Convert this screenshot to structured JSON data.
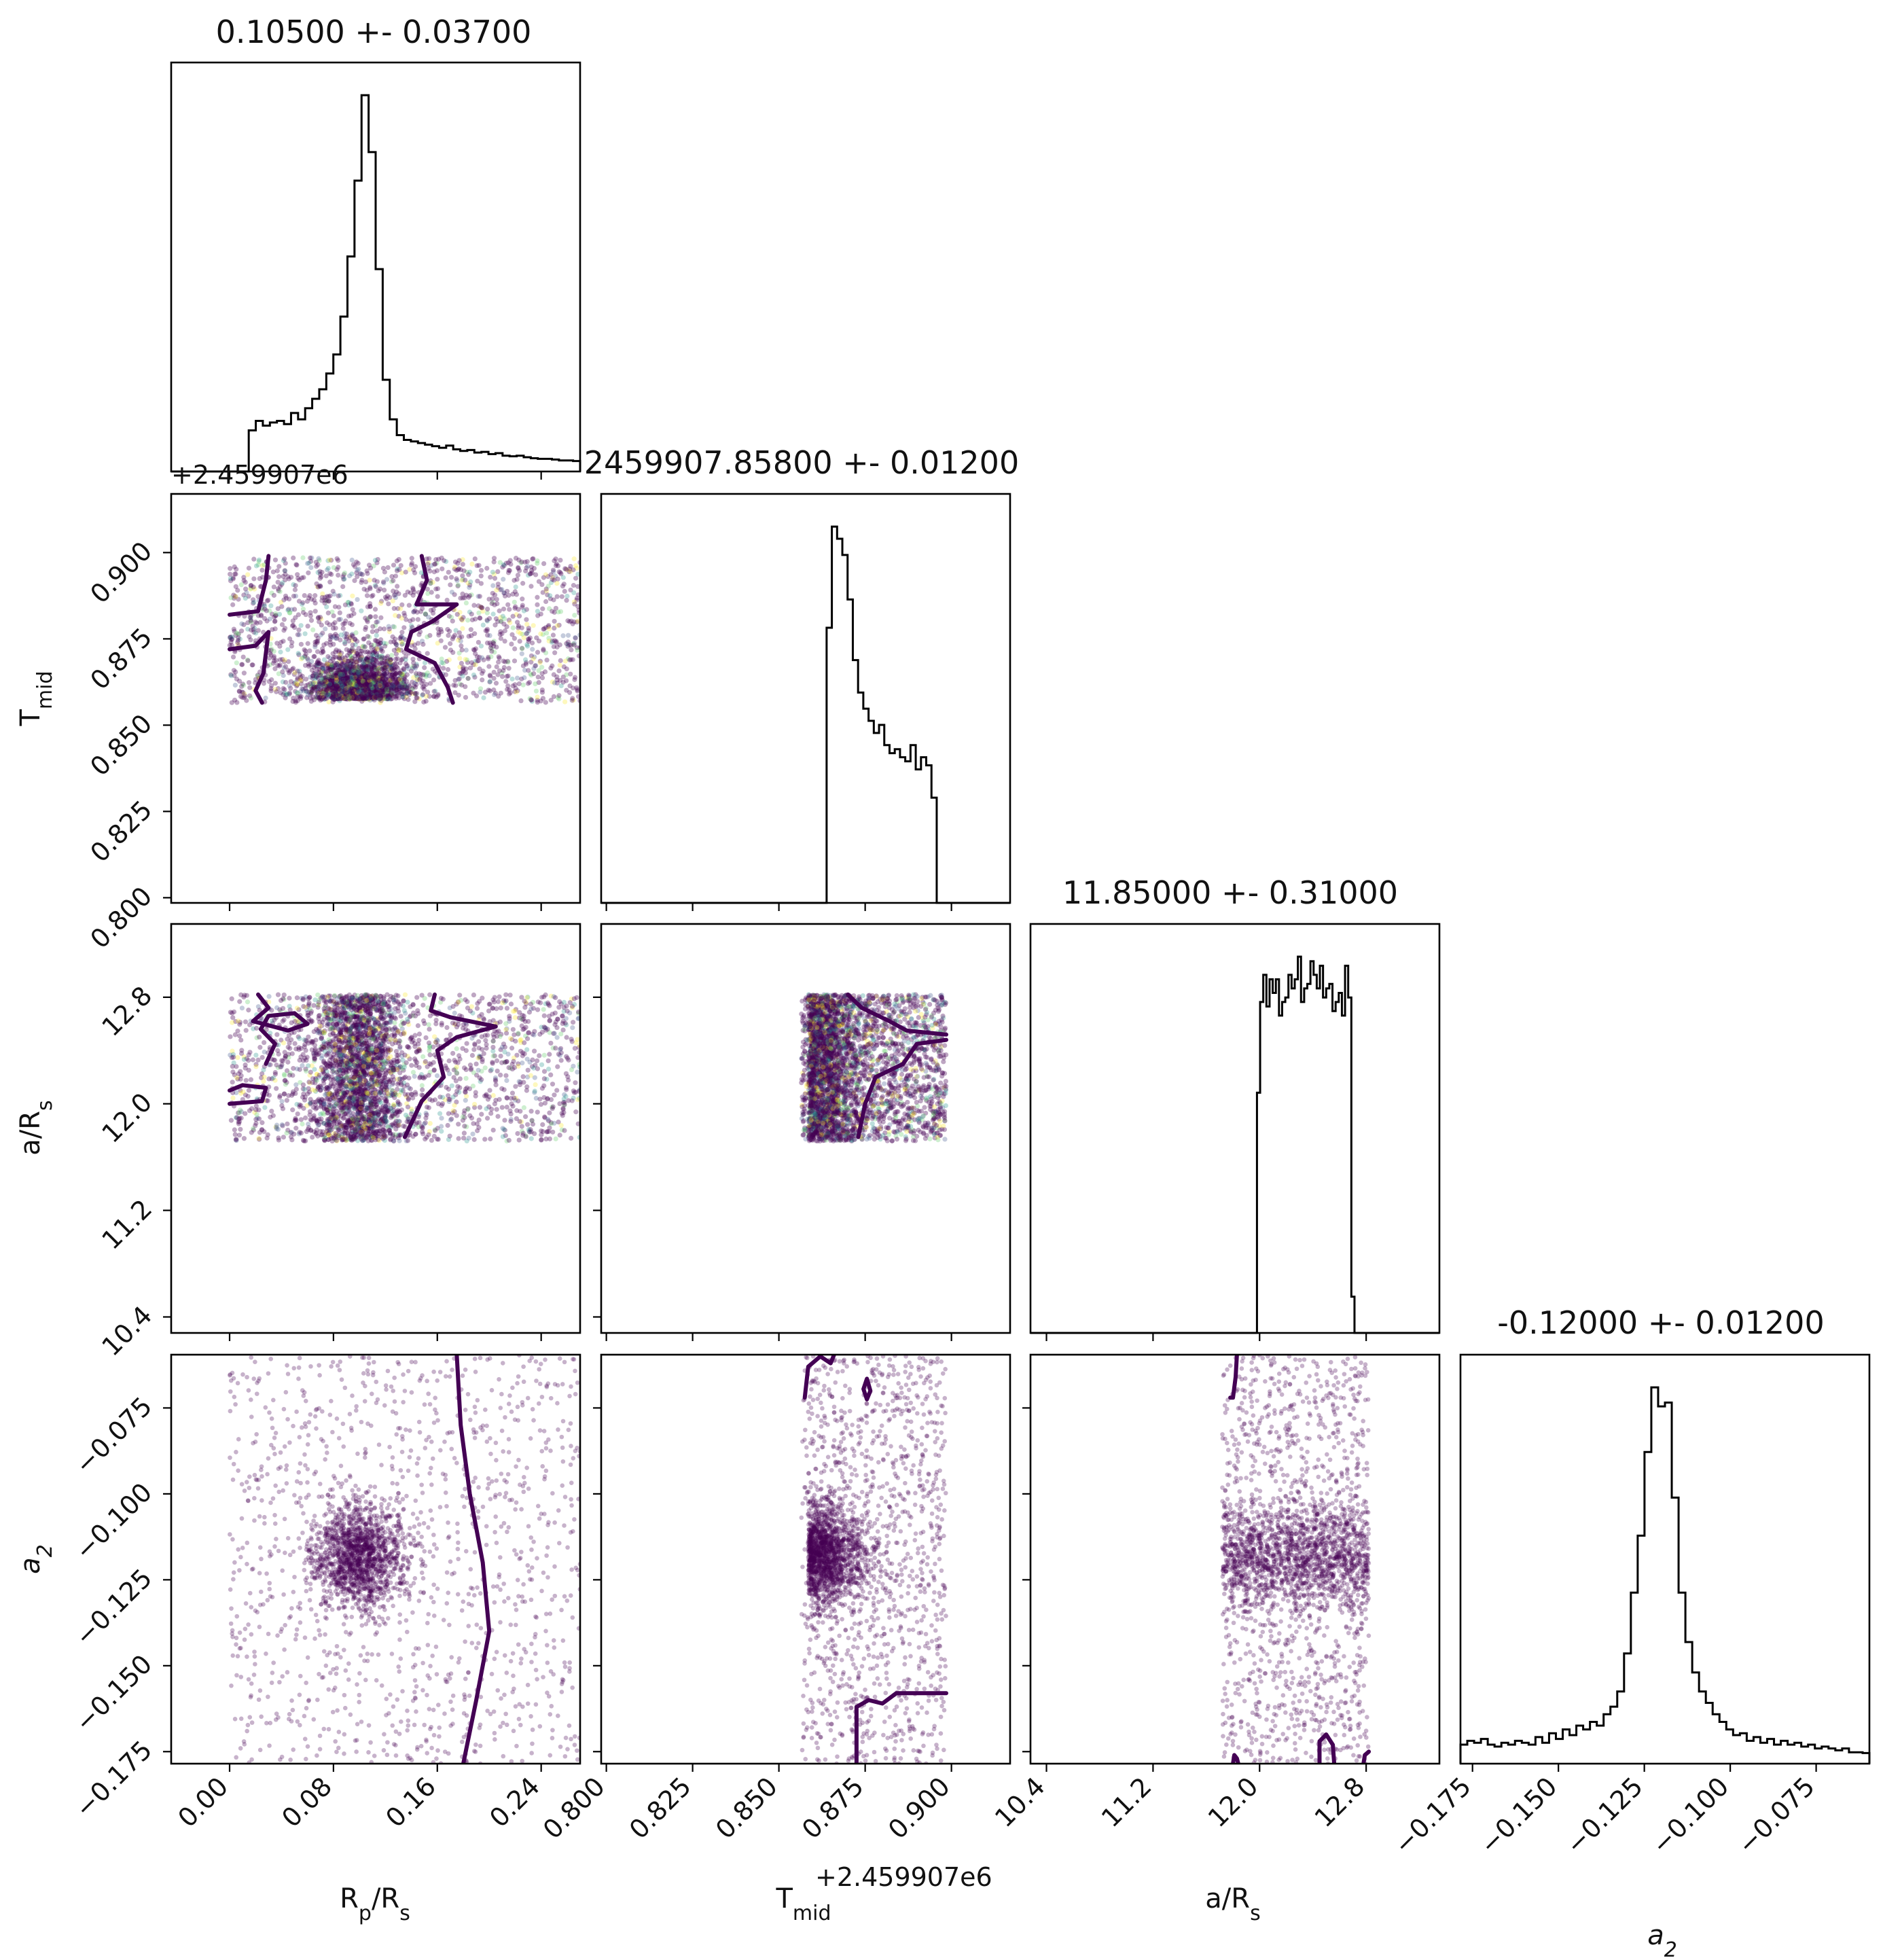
{
  "chart_data": {
    "type": "scatter",
    "title": "",
    "parameters": [
      {
        "key": "rp",
        "label": "R_p/R_s",
        "label_sub": "p",
        "label_base": "R",
        "label_tail": "/R",
        "label_tail_sub": "s",
        "range": [
          -0.045,
          0.27
        ],
        "ticks": [
          0.0,
          0.08,
          0.16,
          0.24
        ],
        "tick_labels": [
          "0.00",
          "0.08",
          "0.16",
          "0.24"
        ],
        "title": "0.10500 +- 0.03700"
      },
      {
        "key": "tmid",
        "label_base": "T",
        "label_sub": "mid",
        "range": [
          0.7985,
          0.917
        ],
        "ticks": [
          0.8,
          0.825,
          0.85,
          0.875,
          0.9
        ],
        "tick_labels": [
          "0.800",
          "0.825",
          "0.850",
          "0.875",
          "0.900"
        ],
        "offset_text": "+2.459907e6",
        "title": "2459907.85800 +- 0.01200"
      },
      {
        "key": "ars",
        "label_base": "a/R",
        "label_sub": "s",
        "range": [
          10.28,
          13.35
        ],
        "ticks": [
          10.4,
          11.2,
          12.0,
          12.8
        ],
        "tick_labels": [
          "10.4",
          "11.2",
          "12.0",
          "12.8"
        ],
        "title": "11.85000 +- 0.31000"
      },
      {
        "key": "a2",
        "label_base": "a",
        "label_sub": "2",
        "range": [
          -0.1785,
          -0.0595
        ],
        "ticks": [
          -0.175,
          -0.15,
          -0.125,
          -0.1,
          -0.075
        ],
        "tick_labels": [
          "−0.175",
          "−0.150",
          "−0.125",
          "−0.100",
          "−0.075"
        ],
        "title": "-0.12000 +- 0.01200"
      }
    ],
    "histograms": {
      "rp": [
        0,
        0,
        0,
        0,
        0,
        0,
        0,
        0,
        0,
        0,
        0,
        1.3,
        1.6,
        1.45,
        1.55,
        1.6,
        1.5,
        1.85,
        1.65,
        2.0,
        2.3,
        2.6,
        3.1,
        3.7,
        4.9,
        6.8,
        9.2,
        11.9,
        10.1,
        6.4,
        2.9,
        1.65,
        1.15,
        1.0,
        0.95,
        0.9,
        0.85,
        0.8,
        0.75,
        0.82,
        0.7,
        0.65,
        0.68,
        0.6,
        0.62,
        0.55,
        0.58,
        0.5,
        0.48,
        0.5,
        0.45,
        0.42,
        0.4,
        0.4,
        0.38,
        0.35,
        0.35,
        0.33
      ],
      "tmid": [
        0,
        0,
        0,
        0,
        0,
        0,
        0,
        0,
        0,
        0,
        0,
        0,
        0,
        0,
        0,
        0,
        0,
        0,
        0,
        0,
        0,
        0,
        0,
        0,
        0,
        0,
        0,
        0,
        0,
        0,
        0,
        0,
        0,
        0,
        0,
        0,
        0,
        0,
        0,
        0,
        0,
        0,
        0,
        6.8,
        9.3,
        9.0,
        8.6,
        7.5,
        6.0,
        5.2,
        4.8,
        4.5,
        4.2,
        4.4,
        3.9,
        3.7,
        3.8,
        3.6,
        3.5,
        3.9,
        3.3,
        3.6,
        3.4,
        2.6,
        0,
        0,
        0,
        0,
        0,
        0,
        0,
        0,
        0,
        0,
        0,
        0,
        0,
        0
      ],
      "ars": [
        0,
        0,
        0,
        0,
        0,
        0,
        0,
        0,
        0,
        0,
        0,
        0,
        0,
        0,
        0,
        0,
        0,
        0,
        0,
        0,
        0,
        0,
        0,
        0,
        0,
        0,
        0,
        0,
        0,
        0,
        0,
        0,
        0,
        0,
        0,
        0,
        0,
        0,
        0,
        0,
        0,
        0,
        0,
        0,
        0,
        0,
        0,
        0,
        0,
        0,
        0,
        0,
        0,
        0,
        0,
        0,
        0,
        0,
        0,
        0,
        0,
        0,
        0,
        0,
        0,
        0,
        0,
        0,
        0,
        0,
        0,
        0,
        5.3,
        7.3,
        7.9,
        7.2,
        7.8,
        7.5,
        7.8,
        7.0,
        7.3,
        7.4,
        7.9,
        7.6,
        7.8,
        8.3,
        7.3,
        7.6,
        7.7,
        8.2,
        7.9,
        7.6,
        8.1,
        7.4,
        7.6,
        7.7,
        7.1,
        7.3,
        7.5,
        7.0,
        8.1,
        7.4,
        0.8,
        0,
        0,
        0,
        0,
        0,
        0,
        0,
        0,
        0,
        0,
        0,
        0,
        0,
        0,
        0,
        0,
        0,
        0,
        0,
        0,
        0,
        0,
        0,
        0,
        0,
        0,
        0
      ],
      "a2": [
        0.5,
        0.6,
        0.55,
        0.65,
        0.5,
        0.45,
        0.55,
        0.5,
        0.6,
        0.55,
        0.5,
        0.7,
        0.55,
        0.8,
        0.65,
        0.9,
        0.75,
        1.0,
        0.9,
        1.1,
        1.0,
        1.3,
        1.5,
        1.9,
        2.9,
        4.5,
        6.0,
        8.2,
        9.9,
        9.4,
        9.5,
        7.0,
        4.5,
        3.2,
        2.4,
        1.9,
        1.6,
        1.3,
        1.1,
        0.9,
        0.75,
        0.8,
        0.6,
        0.7,
        0.55,
        0.65,
        0.5,
        0.6,
        0.5,
        0.55,
        0.45,
        0.5,
        0.4,
        0.45,
        0.4,
        0.35,
        0.4,
        0.3,
        0.3,
        0.28
      ]
    },
    "sample_region": {
      "rp": [
        0.0,
        0.27
      ],
      "tmid": [
        0.8565,
        0.8985
      ],
      "ars": [
        11.72,
        12.82
      ],
      "a2": [
        -0.1785,
        -0.0595
      ]
    },
    "scatter_colormap": [
      "#440154",
      "#3b528b",
      "#21918c",
      "#5ec962",
      "#fde725"
    ],
    "contour_color": "#440154"
  }
}
